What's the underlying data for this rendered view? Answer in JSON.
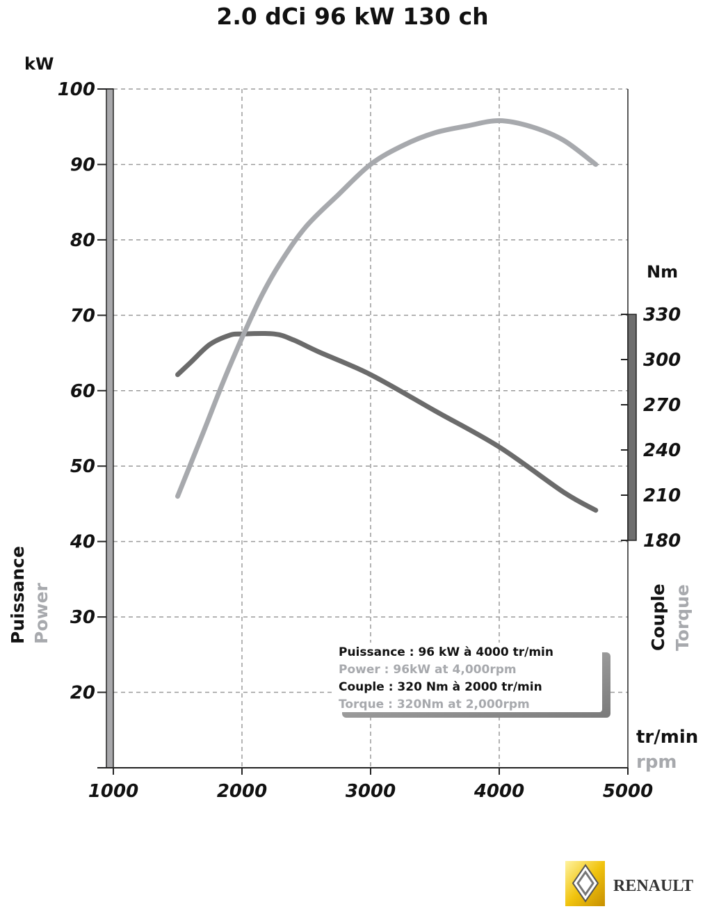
{
  "chart_data": {
    "type": "line",
    "title": "2.0 dCi 96 kW 130 ch",
    "x_axis": {
      "label_primary": "tr/min",
      "label_secondary": "rpm",
      "ticks": [
        "1000",
        "2000",
        "3000",
        "4000",
        "5000"
      ],
      "range": [
        1000,
        5000
      ]
    },
    "y_axis_left": {
      "unit": "kW",
      "label_primary": "Puissance",
      "label_secondary": "Power",
      "ticks": [
        "100",
        "90",
        "80",
        "70",
        "60",
        "50",
        "40",
        "30",
        "20"
      ],
      "range": [
        10,
        100
      ]
    },
    "y_axis_right": {
      "unit": "Nm",
      "label_primary": "Couple",
      "label_secondary": "Torque",
      "ticks": [
        "330",
        "300",
        "270",
        "240",
        "210",
        "180"
      ],
      "range": [
        180,
        330
      ]
    },
    "grid": true,
    "series": [
      {
        "id": "power",
        "axis": "left",
        "color": "#a7a9ad",
        "x": [
          1500,
          1700,
          1850,
          2000,
          2150,
          2300,
          2500,
          2750,
          3000,
          3250,
          3500,
          3750,
          4000,
          4250,
          4500,
          4750
        ],
        "y": [
          46.0,
          54.5,
          61.0,
          67.0,
          72.5,
          77.0,
          81.8,
          86.0,
          90.0,
          92.5,
          94.2,
          95.1,
          95.8,
          95.0,
          93.2,
          90.0
        ]
      },
      {
        "id": "torque",
        "axis": "right",
        "color": "#6b6b6b",
        "x": [
          1500,
          1600,
          1750,
          1900,
          2000,
          2250,
          2400,
          2600,
          3000,
          3500,
          4000,
          4500,
          4750
        ],
        "y": [
          290,
          298,
          310,
          316,
          317,
          317,
          313,
          305,
          290,
          266,
          242,
          212,
          200
        ]
      }
    ],
    "legend_box": {
      "lines": [
        {
          "text": "Puissance : 96 kW à 4000 tr/min",
          "color": "#111111"
        },
        {
          "text": "Power : 96kW at 4,000rpm",
          "color": "#a7a9ad"
        },
        {
          "text": "Couple : 320 Nm à 2000 tr/min",
          "color": "#111111"
        },
        {
          "text": "Torque : 320Nm at 2,000rpm",
          "color": "#a7a9ad"
        }
      ]
    }
  },
  "logo": {
    "text": "RENAULT",
    "colors": {
      "badge": "#f6c400",
      "text": "#333333"
    }
  }
}
